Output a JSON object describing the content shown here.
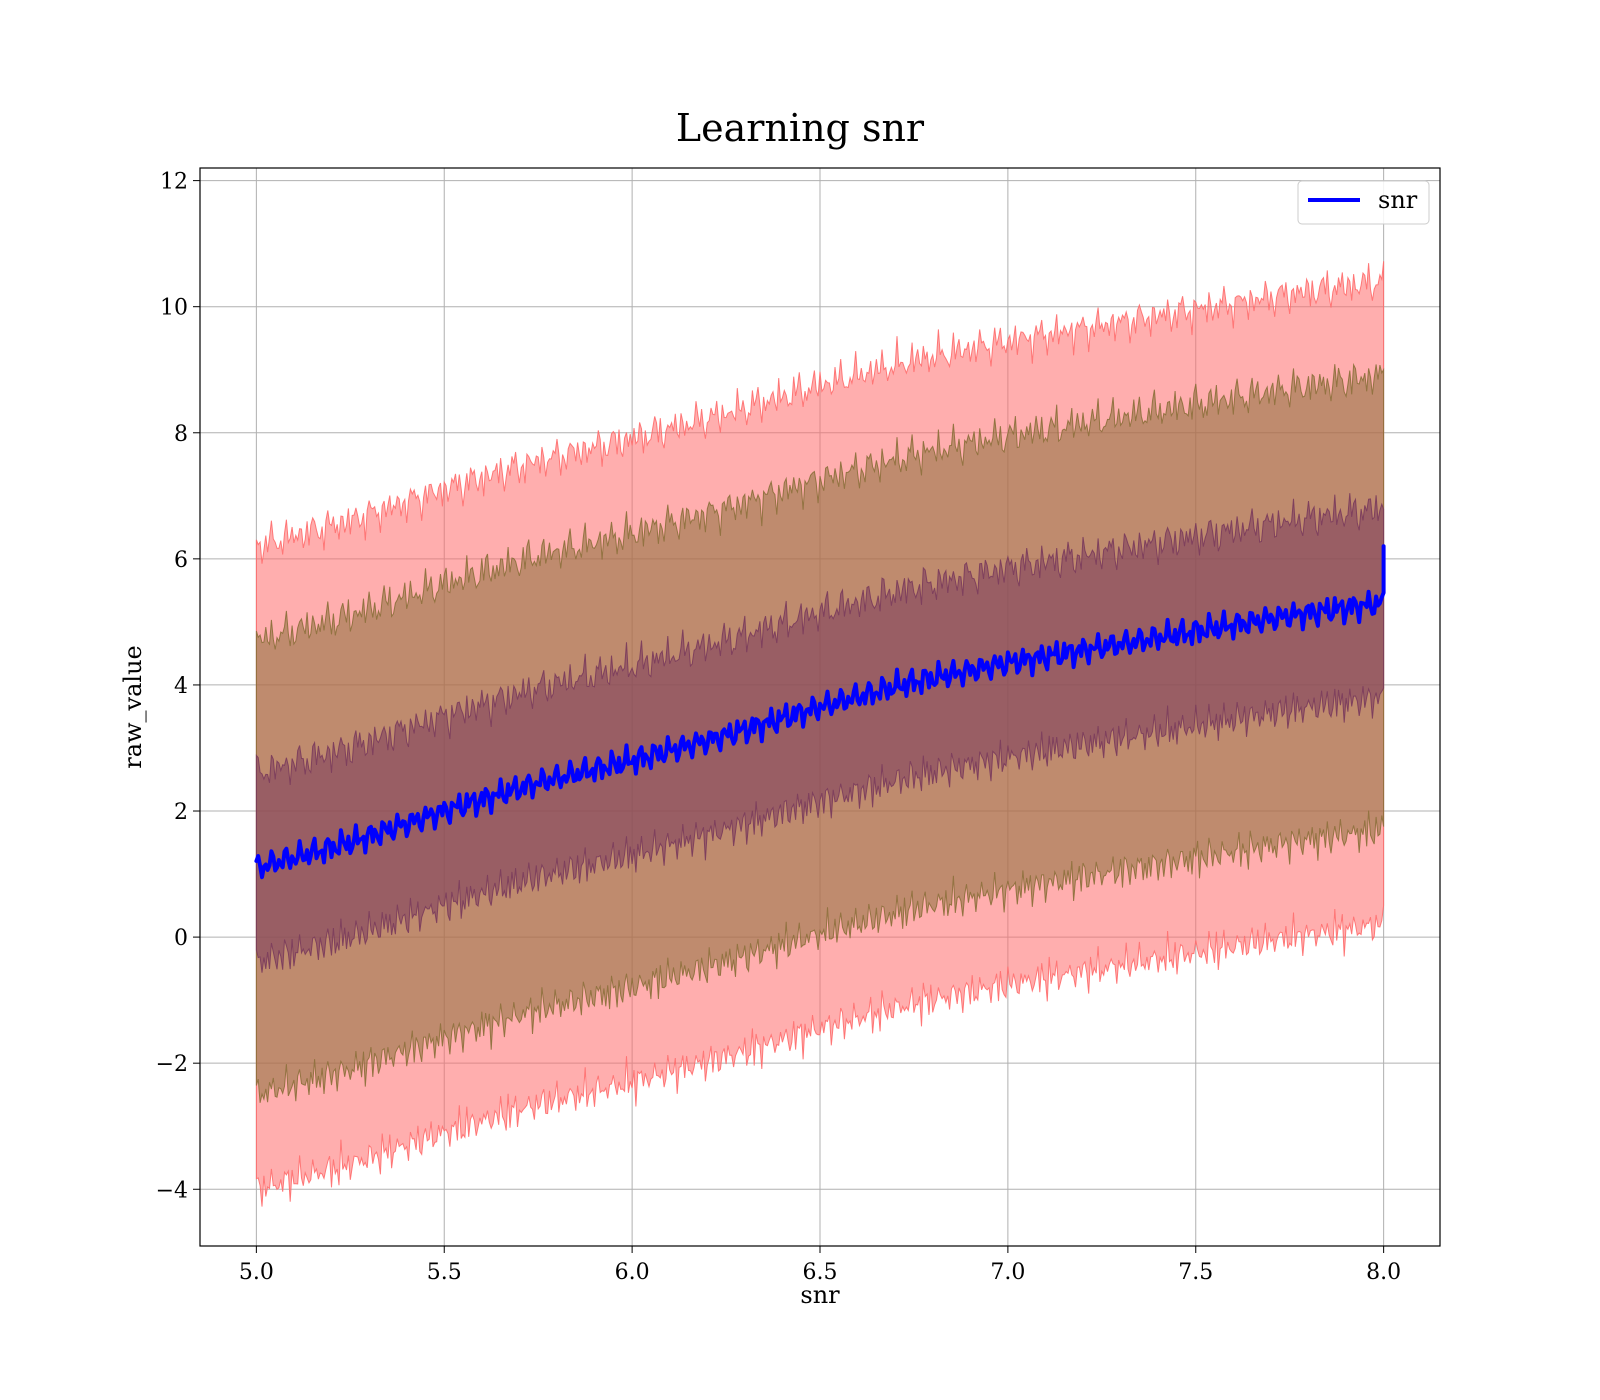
{
  "chart_data": {
    "type": "line",
    "title": "Learning snr",
    "xlabel": "snr",
    "ylabel": "raw_value",
    "xlim": [
      4.85,
      8.15
    ],
    "ylim": [
      -4.9,
      12.2
    ],
    "xticks": [
      5.0,
      5.5,
      6.0,
      6.5,
      7.0,
      7.5,
      8.0
    ],
    "xtick_labels": [
      "5.0",
      "5.5",
      "6.0",
      "6.5",
      "7.0",
      "7.5",
      "8.0"
    ],
    "yticks": [
      -4,
      -2,
      0,
      2,
      4,
      6,
      8,
      10,
      12
    ],
    "ytick_labels": [
      "−4",
      "−2",
      "0",
      "2",
      "4",
      "6",
      "8",
      "10",
      "12"
    ],
    "grid": true,
    "legend": {
      "position": "top-right",
      "entries": [
        "snr"
      ]
    },
    "series": [
      {
        "name": "snr",
        "color": "#0000ff",
        "x": [
          5.0,
          5.25,
          5.5,
          5.75,
          6.0,
          6.25,
          6.5,
          6.75,
          7.0,
          7.25,
          7.5,
          7.75,
          8.0
        ],
        "y": [
          1.1,
          1.5,
          2.0,
          2.45,
          2.8,
          3.2,
          3.65,
          4.05,
          4.35,
          4.6,
          4.85,
          5.1,
          5.3
        ],
        "end_spike": 6.2
      }
    ],
    "bands": [
      {
        "sigma": 1,
        "half_width": 1.5,
        "color": "#7a3b5c"
      },
      {
        "sigma": 2,
        "half_width": 3.6,
        "color": "#8b6f3a"
      },
      {
        "sigma": 3,
        "half_width": 5.1,
        "color": "#ff6b6b"
      }
    ]
  }
}
